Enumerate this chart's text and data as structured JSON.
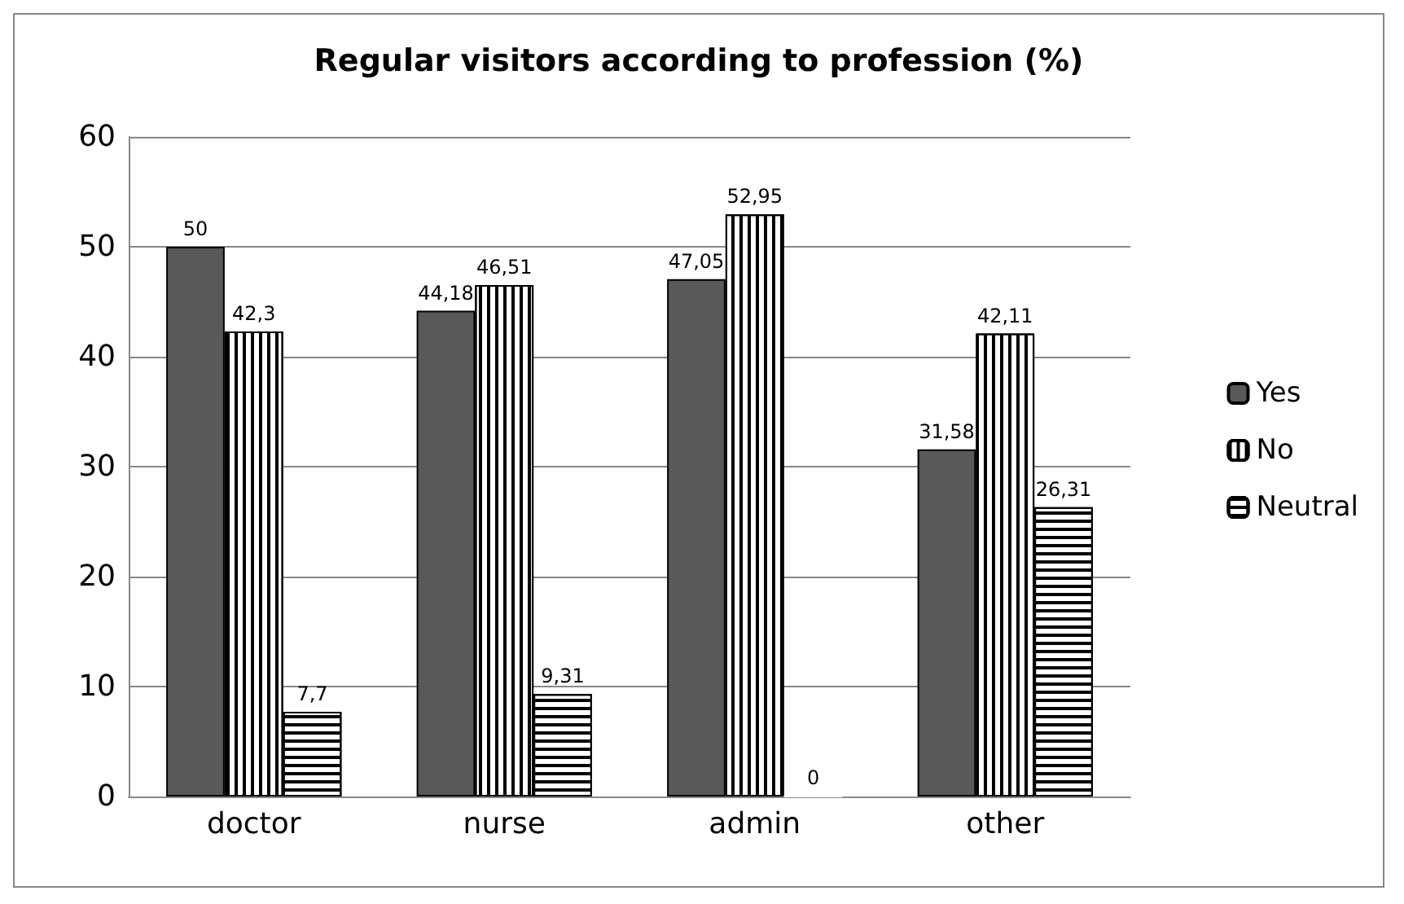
{
  "chart_data": {
    "type": "bar",
    "title": "Regular visitors according to profession (%)",
    "categories": [
      "doctor",
      "nurse",
      "admin",
      "other"
    ],
    "series": [
      {
        "name": "Yes",
        "color": "#595959",
        "values": [
          50,
          44.18,
          47.05,
          31.58
        ],
        "value_labels": [
          "50",
          "44,18",
          "47,05",
          "31,58"
        ]
      },
      {
        "name": "No",
        "color": "#ffffff",
        "values": [
          42.3,
          46.51,
          52.95,
          42.11
        ],
        "value_labels": [
          "42,3",
          "46,51",
          "52,95",
          "42,11"
        ]
      },
      {
        "name": "Neutral",
        "color": "#ffffff",
        "values": [
          7.7,
          9.31,
          0,
          26.31
        ],
        "value_labels": [
          "7,7",
          "9,31",
          "0",
          "26,31"
        ]
      }
    ],
    "ylim": [
      0,
      60
    ],
    "yticks": [
      0,
      10,
      20,
      30,
      40,
      50,
      60
    ],
    "grid": "y",
    "legend": "right"
  }
}
